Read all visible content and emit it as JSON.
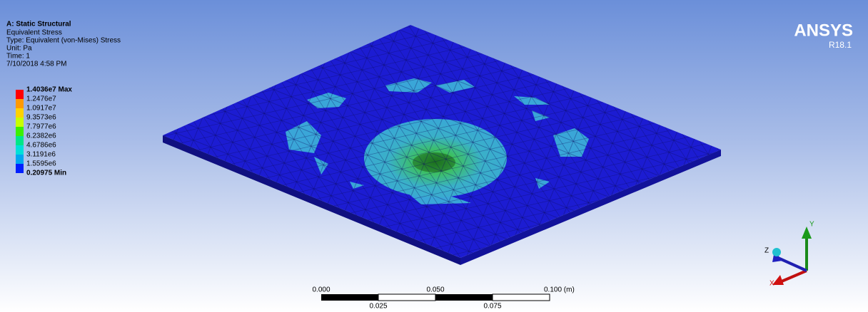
{
  "header": {
    "title": "A: Static Structural",
    "lines": [
      "Equivalent Stress",
      "Type: Equivalent (von-Mises) Stress",
      "Unit: Pa",
      "Time: 1",
      "7/10/2018 4:58 PM"
    ]
  },
  "legend": {
    "labels": [
      "1.4036e7 Max",
      "1.2476e7",
      "1.0917e7",
      "9.3573e6",
      "7.7977e6",
      "6.2382e6",
      "4.6786e6",
      "3.1191e6",
      "1.5595e6",
      "0.20975 Min"
    ],
    "colors": [
      "#ff0000",
      "#ff9900",
      "#ffd200",
      "#c8ff00",
      "#3cf000",
      "#00e688",
      "#00e0d8",
      "#00a8f0",
      "#0020ff"
    ]
  },
  "brand": {
    "name": "ANSYS",
    "version": "R18.1"
  },
  "scale_bar": {
    "top_labels": [
      "0.000",
      "0.050",
      "0.100 (m)"
    ],
    "bottom_labels": [
      "0.025",
      "0.075"
    ]
  },
  "triad": {
    "x": "X",
    "y": "Y",
    "z": "Z"
  }
}
